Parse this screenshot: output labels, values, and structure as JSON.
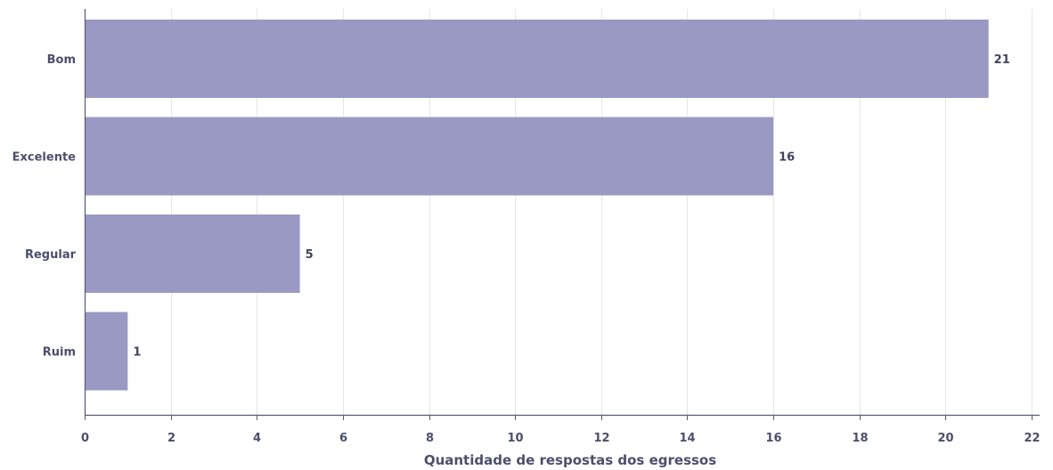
{
  "chart_data": {
    "type": "bar",
    "orientation": "horizontal",
    "categories": [
      "Bom",
      "Excelente",
      "Regular",
      "Ruim"
    ],
    "values": [
      21,
      16,
      5,
      1
    ],
    "xlabel": "Quantidade de respostas dos egressos",
    "ylabel": "",
    "xlim": [
      0,
      22
    ],
    "xticks": [
      0,
      2,
      4,
      6,
      8,
      10,
      12,
      14,
      16,
      18,
      20,
      22
    ],
    "grid": "vertical",
    "data_labels": true,
    "bar_color": "#9999c4"
  }
}
